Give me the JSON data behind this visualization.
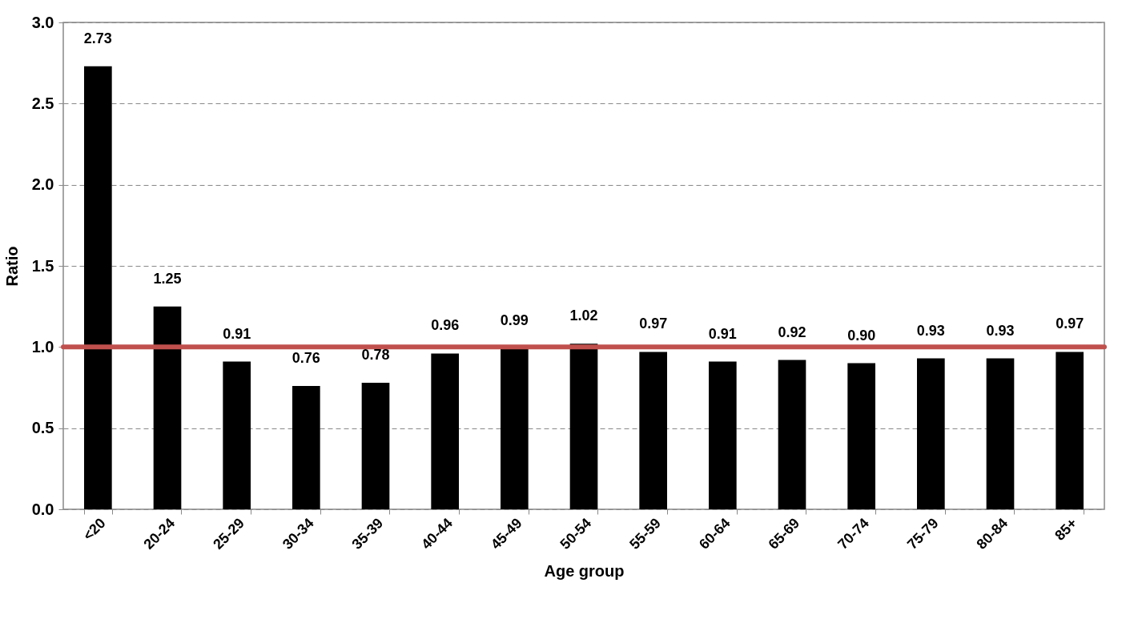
{
  "chart_data": {
    "type": "bar",
    "xlabel": "Age group",
    "ylabel": "Ratio",
    "categories": [
      "<20",
      "20-24",
      "25-29",
      "30-34",
      "35-39",
      "40-44",
      "45-49",
      "50-54",
      "55-59",
      "60-64",
      "65-69",
      "70-74",
      "75-79",
      "80-84",
      "85+"
    ],
    "values": [
      2.73,
      1.25,
      0.91,
      0.76,
      0.78,
      0.96,
      0.99,
      1.02,
      0.97,
      0.91,
      0.92,
      0.9,
      0.93,
      0.93,
      0.97
    ],
    "value_labels": [
      "2.73",
      "1.25",
      "0.91",
      "0.76",
      "0.78",
      "0.96",
      "0.99",
      "1.02",
      "0.97",
      "0.91",
      "0.92",
      "0.90",
      "0.93",
      "0.93",
      "0.97"
    ],
    "color": "#000000",
    "ylim": [
      0,
      3
    ],
    "yticks": [
      {
        "value": 0,
        "label": "0.0"
      },
      0.5,
      {
        "value": 1,
        "label": "1.0"
      },
      1.5,
      {
        "value": 2,
        "label": "2.0"
      },
      2.5,
      {
        "value": 3,
        "label": "3.0"
      }
    ],
    "grid": "y",
    "ref_lines": [
      {
        "axis": "y",
        "value": 1,
        "color": "#c0504d"
      }
    ]
  }
}
